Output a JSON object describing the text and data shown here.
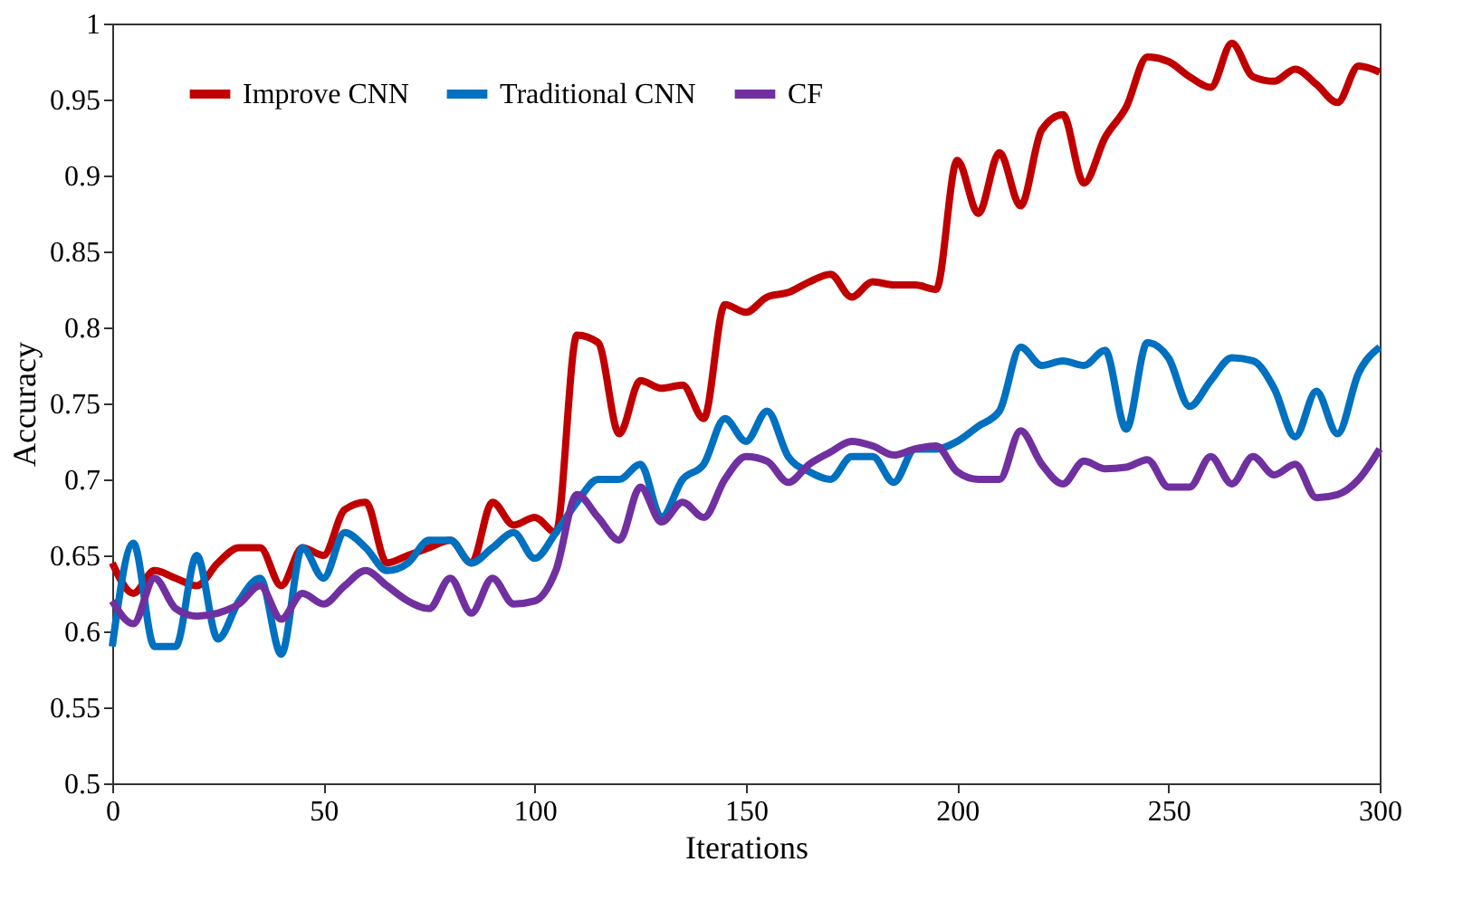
{
  "chart_data": {
    "type": "line",
    "xlabel": "Iterations",
    "ylabel": "Accuracy",
    "x": [
      0,
      5,
      10,
      15,
      20,
      25,
      30,
      35,
      40,
      45,
      50,
      55,
      60,
      65,
      70,
      75,
      80,
      85,
      90,
      95,
      100,
      105,
      110,
      115,
      120,
      125,
      130,
      135,
      140,
      145,
      150,
      155,
      160,
      165,
      170,
      175,
      180,
      185,
      190,
      195,
      200,
      205,
      210,
      215,
      220,
      225,
      230,
      235,
      240,
      245,
      250,
      255,
      260,
      265,
      270,
      275,
      280,
      285,
      290,
      295,
      300
    ],
    "series": [
      {
        "name": "Improve CNN",
        "color": "#c00000",
        "values": [
          0.645,
          0.625,
          0.64,
          0.635,
          0.63,
          0.645,
          0.655,
          0.655,
          0.63,
          0.655,
          0.65,
          0.68,
          0.685,
          0.645,
          0.65,
          0.655,
          0.66,
          0.645,
          0.685,
          0.67,
          0.675,
          0.665,
          0.795,
          0.79,
          0.73,
          0.765,
          0.76,
          0.762,
          0.74,
          0.815,
          0.81,
          0.82,
          0.823,
          0.83,
          0.835,
          0.82,
          0.83,
          0.828,
          0.828,
          0.825,
          0.91,
          0.875,
          0.915,
          0.88,
          0.93,
          0.94,
          0.895,
          0.925,
          0.945,
          0.978,
          0.975,
          0.965,
          0.958,
          0.987,
          0.965,
          0.962,
          0.97,
          0.96,
          0.948,
          0.972,
          0.968
        ]
      },
      {
        "name": "Traditional CNN",
        "color": "#0070c0",
        "values": [
          0.59,
          0.658,
          0.59,
          0.59,
          0.65,
          0.595,
          0.62,
          0.635,
          0.585,
          0.655,
          0.635,
          0.665,
          0.655,
          0.64,
          0.645,
          0.66,
          0.66,
          0.645,
          0.655,
          0.665,
          0.648,
          0.665,
          0.685,
          0.7,
          0.7,
          0.71,
          0.675,
          0.7,
          0.71,
          0.74,
          0.725,
          0.745,
          0.715,
          0.705,
          0.7,
          0.715,
          0.715,
          0.698,
          0.72,
          0.72,
          0.725,
          0.735,
          0.745,
          0.787,
          0.775,
          0.778,
          0.775,
          0.785,
          0.733,
          0.79,
          0.78,
          0.748,
          0.765,
          0.78,
          0.778,
          0.76,
          0.728,
          0.758,
          0.73,
          0.77,
          0.787
        ]
      },
      {
        "name": "CF",
        "color": "#7030a0",
        "values": [
          0.62,
          0.605,
          0.635,
          0.615,
          0.61,
          0.612,
          0.618,
          0.63,
          0.608,
          0.625,
          0.618,
          0.63,
          0.64,
          0.63,
          0.62,
          0.615,
          0.635,
          0.612,
          0.635,
          0.618,
          0.62,
          0.64,
          0.69,
          0.675,
          0.66,
          0.695,
          0.672,
          0.685,
          0.675,
          0.7,
          0.715,
          0.712,
          0.698,
          0.71,
          0.718,
          0.725,
          0.722,
          0.716,
          0.72,
          0.722,
          0.705,
          0.7,
          0.7,
          0.732,
          0.71,
          0.697,
          0.712,
          0.707,
          0.708,
          0.713,
          0.695,
          0.695,
          0.715,
          0.697,
          0.715,
          0.703,
          0.71,
          0.688,
          0.69,
          0.7,
          0.72
        ]
      }
    ],
    "xlim": [
      0,
      300
    ],
    "xticks": [
      0,
      50,
      100,
      150,
      200,
      250,
      300
    ],
    "ylim": [
      0.5,
      1
    ],
    "yticks": [
      0.5,
      0.55,
      0.6,
      0.65,
      0.7,
      0.75,
      0.8,
      0.85,
      0.9,
      0.95,
      1
    ],
    "grid": false,
    "legend": "top left",
    "marker": "none",
    "line_style": "solid"
  }
}
